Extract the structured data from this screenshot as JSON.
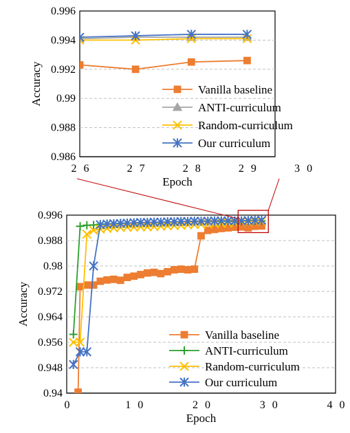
{
  "chart_data": [
    {
      "type": "line",
      "title": "",
      "xlabel": "Epoch",
      "ylabel": "Accuracy",
      "xlim": [
        26,
        29.5
      ],
      "x_ticks": [
        "2 6",
        "2 7",
        "2 8",
        "2 9",
        "3 0"
      ],
      "ylim": [
        0.986,
        0.996
      ],
      "y_ticks": [
        "0.986",
        "0.988",
        "0.99",
        "0.992",
        "0.994",
        "0.996"
      ],
      "grid": "horizontal dashed",
      "legend_position": "bottom-right",
      "x": [
        26,
        27,
        28,
        29
      ],
      "series": [
        {
          "name": "Vanilla baseline",
          "color": "#ED7D31",
          "marker": "square",
          "values": [
            0.9923,
            0.992,
            0.9925,
            0.9926
          ]
        },
        {
          "name": "ANTI-curriculum",
          "color": "#A5A5A5",
          "marker": "triangle",
          "values": [
            0.9941,
            0.9942,
            0.9942,
            0.9942
          ]
        },
        {
          "name": "Random-curriculum",
          "color": "#FFC000",
          "marker": "x",
          "values": [
            0.994,
            0.994,
            0.9941,
            0.9941
          ]
        },
        {
          "name": "Our curriculum",
          "color": "#4472C4",
          "marker": "asterisk",
          "values": [
            0.9942,
            0.9943,
            0.9944,
            0.9944
          ]
        }
      ]
    },
    {
      "type": "line",
      "title": "",
      "xlabel": "Epoch",
      "ylabel": "Accuracy",
      "xlim": [
        0,
        40
      ],
      "x_ticks": [
        "0",
        "1 0",
        "2 0",
        "3 0",
        "4 0"
      ],
      "ylim": [
        0.94,
        0.996
      ],
      "y_ticks": [
        "0.94",
        "0.948",
        "0.956",
        "0.964",
        "0.972",
        "0.98",
        "0.988",
        "0.996"
      ],
      "grid": "horizontal dashed",
      "legend_position": "bottom-right",
      "zoom_box": {
        "x": [
          25.5,
          30
        ],
        "y": [
          0.9905,
          0.9975
        ]
      },
      "series": [
        {
          "name": "Vanilla baseline",
          "color": "#ED7D31",
          "marker": "square",
          "x": [
            1.7,
            2,
            3,
            4,
            5,
            6,
            7,
            8,
            9,
            10,
            11,
            12,
            13,
            14,
            15,
            16,
            17,
            18,
            19,
            20,
            21,
            22,
            23,
            24,
            25,
            26,
            27,
            28,
            29
          ],
          "values": [
            0.9403,
            0.9735,
            0.974,
            0.974,
            0.9752,
            0.9756,
            0.9758,
            0.9755,
            0.9764,
            0.9768,
            0.9773,
            0.9778,
            0.978,
            0.9776,
            0.9782,
            0.9788,
            0.979,
            0.9788,
            0.979,
            0.9895,
            0.9912,
            0.9915,
            0.9918,
            0.992,
            0.9922,
            0.9923,
            0.992,
            0.9925,
            0.9926
          ]
        },
        {
          "name": "ANTI-curriculum",
          "color": "#2CA02C",
          "marker": "plus",
          "x": [
            1,
            2,
            3,
            4,
            5,
            6,
            7,
            8,
            9,
            10,
            11,
            12,
            13,
            14,
            15,
            16,
            17,
            18,
            19,
            20,
            21,
            22,
            23,
            24,
            25,
            26,
            27,
            28,
            29
          ],
          "values": [
            0.9585,
            0.9925,
            0.9928,
            0.9929,
            0.9931,
            0.9932,
            0.9933,
            0.9934,
            0.9935,
            0.9935,
            0.9936,
            0.9936,
            0.9937,
            0.9937,
            0.9938,
            0.9938,
            0.9939,
            0.9939,
            0.9939,
            0.994,
            0.994,
            0.994,
            0.9941,
            0.9941,
            0.9941,
            0.9941,
            0.9942,
            0.9942,
            0.9942
          ]
        },
        {
          "name": "Random-curriculum",
          "color": "#FFC000",
          "marker": "x",
          "x": [
            1,
            2,
            3,
            4,
            5,
            6,
            7,
            8,
            9,
            10,
            11,
            12,
            13,
            14,
            15,
            16,
            17,
            18,
            19,
            20,
            21,
            22,
            23,
            24,
            25,
            26,
            27,
            28,
            29
          ],
          "values": [
            0.956,
            0.956,
            0.99,
            0.9912,
            0.9916,
            0.9918,
            0.992,
            0.9921,
            0.9922,
            0.9922,
            0.9923,
            0.9923,
            0.9924,
            0.9925,
            0.9926,
            0.9927,
            0.9928,
            0.9929,
            0.993,
            0.9931,
            0.9932,
            0.9933,
            0.9934,
            0.9935,
            0.9936,
            0.994,
            0.994,
            0.9941,
            0.9941
          ]
        },
        {
          "name": "Our curriculum",
          "color": "#4472C4",
          "marker": "asterisk",
          "x": [
            1,
            2,
            3,
            4,
            5,
            6,
            7,
            8,
            9,
            10,
            11,
            12,
            13,
            14,
            15,
            16,
            17,
            18,
            19,
            20,
            21,
            22,
            23,
            24,
            25,
            26,
            27,
            28,
            29
          ],
          "values": [
            0.949,
            0.953,
            0.953,
            0.98,
            0.993,
            0.9932,
            0.9933,
            0.9934,
            0.9935,
            0.9936,
            0.9937,
            0.9937,
            0.9938,
            0.9938,
            0.9939,
            0.9939,
            0.994,
            0.994,
            0.9941,
            0.9941,
            0.9941,
            0.9942,
            0.9942,
            0.9942,
            0.9942,
            0.9942,
            0.9943,
            0.9944,
            0.9944
          ]
        }
      ]
    }
  ]
}
